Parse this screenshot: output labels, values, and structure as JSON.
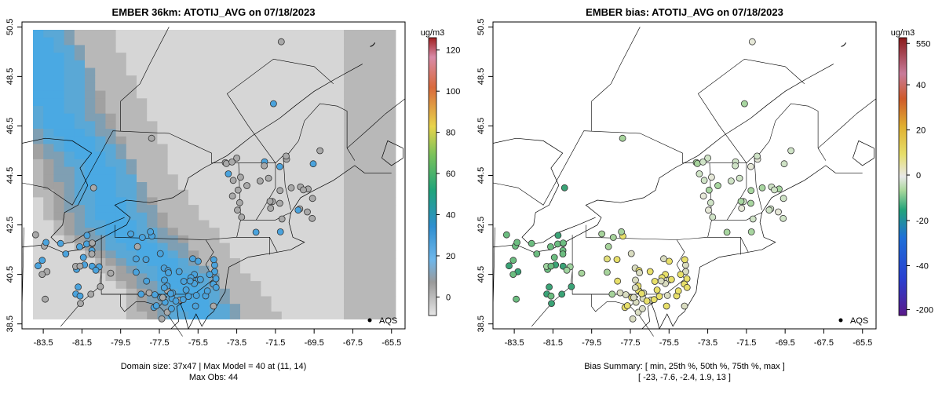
{
  "chart_data": [
    {
      "type": "heatmap",
      "title": "EMBER 36km: ATOTIJ_AVG on 07/18/2023",
      "x_ticks": [
        "-83.5",
        "-81.5",
        "-79.5",
        "-77.5",
        "-75.5",
        "-73.5",
        "-71.5",
        "-69.5",
        "-67.5",
        "-65.5"
      ],
      "y_ticks": [
        "38.5",
        "40.5",
        "42.5",
        "44.5",
        "46.5",
        "48.5",
        "50.5"
      ],
      "xlim": [
        -84.6,
        -64.8
      ],
      "ylim": [
        38.3,
        50.7
      ],
      "colorbar": {
        "units": "ug/m3",
        "ticks": [
          "0",
          "20",
          "40",
          "60",
          "80",
          "100",
          "120"
        ],
        "range": [
          -9,
          126
        ]
      },
      "legend_label": "AQS",
      "footer_line1": "Domain size: 37x47 | Max Model = 40 at (11, 14)",
      "footer_line2": "Max Obs: 44"
    },
    {
      "type": "scatter",
      "title": "EMBER bias: ATOTIJ_AVG on 07/18/2023",
      "x_ticks": [
        "-83.5",
        "-81.5",
        "-79.5",
        "-77.5",
        "-75.5",
        "-73.5",
        "-71.5",
        "-69.5",
        "-67.5",
        "-65.5"
      ],
      "y_ticks": [
        "38.5",
        "40.5",
        "42.5",
        "44.5",
        "46.5",
        "48.5",
        "50.5"
      ],
      "xlim": [
        -84.6,
        -64.8
      ],
      "ylim": [
        38.3,
        50.7
      ],
      "colorbar": {
        "units": "ug/m3",
        "ticks": [
          "550",
          "40",
          "20",
          "0",
          "-20",
          "-40",
          "-200"
        ]
      },
      "legend_label": "AQS",
      "footer_line1": "Bias Summary: [ min, 25th %, 50th %, 75th %, max ]",
      "footer_line2": "[ -23,   -7.6,   -2.4,   1.9,   13 ]"
    }
  ]
}
